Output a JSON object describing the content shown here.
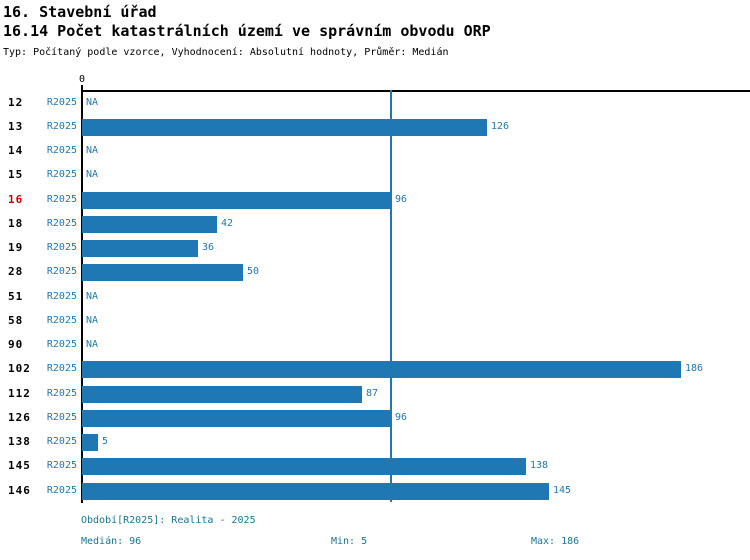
{
  "header": {
    "title": "16. Stavební úřad",
    "subtitle": "16.14 Počet katastrálních území ve správním obvodu ORP",
    "meta": "Typ: Počítaný podle vzorce, Vyhodnocení: Absolutní hodnoty, Průměr: Medián"
  },
  "chart_data": {
    "type": "bar",
    "orientation": "horizontal",
    "title": "16.14 Počet katastrálních území ve správním obvodu ORP",
    "series_label": "R2025",
    "categories": [
      "12",
      "13",
      "14",
      "15",
      "16",
      "18",
      "19",
      "28",
      "51",
      "58",
      "90",
      "102",
      "112",
      "126",
      "138",
      "145",
      "146"
    ],
    "values": [
      null,
      126,
      null,
      null,
      96,
      42,
      36,
      50,
      null,
      null,
      null,
      186,
      87,
      96,
      5,
      138,
      145
    ],
    "na_label": "NA",
    "highlighted_category": "16",
    "median_line_value": 96,
    "x_axis": {
      "zero_label": "0",
      "xlim": [
        0,
        208
      ],
      "grid": false
    },
    "legend_position": "none",
    "colors": {
      "bar": "#1f77b4",
      "value_label": "#1f77b4",
      "series_label": "#1f77b4",
      "median_line": "#1f77b4",
      "highlight_id": "#cc0000",
      "id_label": "#000000",
      "footer_text": "#17769a",
      "axis": "#000000"
    }
  },
  "footer": {
    "period": "Období[R2025]: Realita - 2025",
    "median": "Medián: 96",
    "min": "Min: 5",
    "max": "Max: 186"
  }
}
